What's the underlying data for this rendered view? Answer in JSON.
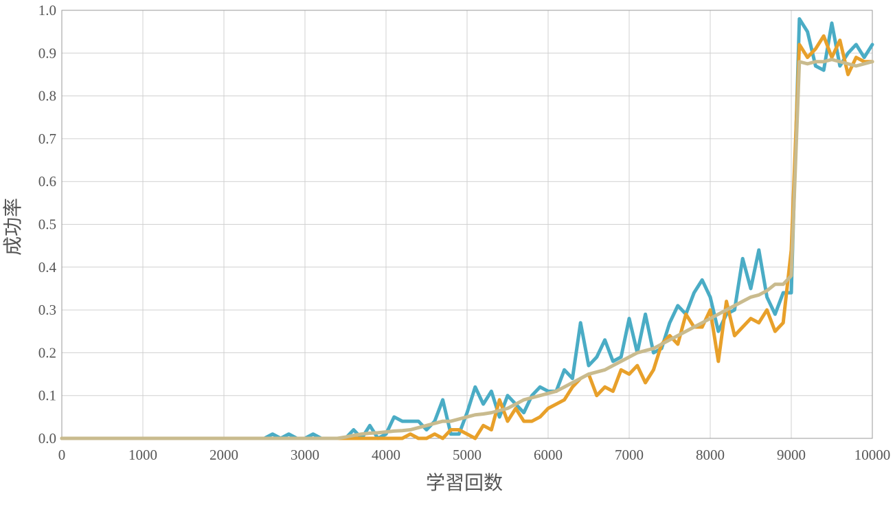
{
  "chart_data": {
    "type": "line",
    "x_label": "学習回数",
    "y_label": "成功率",
    "xlim": [
      0,
      10000
    ],
    "ylim": [
      0,
      1
    ],
    "xticks": [
      0,
      1000,
      2000,
      3000,
      4000,
      5000,
      6000,
      7000,
      8000,
      9000,
      10000
    ],
    "yticks": [
      {
        "value": 0,
        "label": "0.0"
      },
      {
        "value": 0.1,
        "label": "0.1"
      },
      {
        "value": 0.2,
        "label": "0.2"
      },
      {
        "value": 0.3,
        "label": "0.3"
      },
      {
        "value": 0.4,
        "label": "0.4"
      },
      {
        "value": 0.5,
        "label": "0.5"
      },
      {
        "value": 0.6,
        "label": "0.6"
      },
      {
        "value": 0.7,
        "label": "0.7"
      },
      {
        "value": 0.8,
        "label": "0.8"
      },
      {
        "value": 0.9,
        "label": "0.9"
      },
      {
        "value": 1,
        "label": "1.0"
      }
    ],
    "grid": true,
    "x": [
      0,
      100,
      200,
      300,
      400,
      500,
      600,
      700,
      800,
      900,
      1000,
      1100,
      1200,
      1300,
      1400,
      1500,
      1600,
      1700,
      1800,
      1900,
      2000,
      2100,
      2200,
      2300,
      2400,
      2500,
      2600,
      2700,
      2800,
      2900,
      3000,
      3100,
      3200,
      3300,
      3400,
      3500,
      3600,
      3700,
      3800,
      3900,
      4000,
      4100,
      4200,
      4300,
      4400,
      4500,
      4600,
      4700,
      4800,
      4900,
      5000,
      5100,
      5200,
      5300,
      5400,
      5500,
      5600,
      5700,
      5800,
      5900,
      6000,
      6100,
      6200,
      6300,
      6400,
      6500,
      6600,
      6700,
      6800,
      6900,
      7000,
      7100,
      7200,
      7300,
      7400,
      7500,
      7600,
      7700,
      7800,
      7900,
      8000,
      8100,
      8200,
      8300,
      8400,
      8500,
      8600,
      8700,
      8800,
      8900,
      9000,
      9100,
      9200,
      9300,
      9400,
      9500,
      9600,
      9700,
      9800,
      9900,
      10000
    ],
    "series": [
      {
        "color": "#4aacc5",
        "values": [
          0,
          0,
          0,
          0,
          0,
          0,
          0,
          0,
          0,
          0,
          0,
          0,
          0,
          0,
          0,
          0,
          0,
          0,
          0,
          0,
          0,
          0,
          0,
          0,
          0,
          0,
          0.01,
          0,
          0.01,
          0,
          0,
          0.01,
          0,
          0,
          0,
          0,
          0.02,
          0,
          0.03,
          0,
          0.01,
          0.05,
          0.04,
          0.04,
          0.04,
          0.02,
          0.04,
          0.09,
          0.01,
          0.01,
          0.06,
          0.12,
          0.08,
          0.11,
          0.05,
          0.1,
          0.08,
          0.06,
          0.1,
          0.12,
          0.11,
          0.11,
          0.16,
          0.14,
          0.27,
          0.17,
          0.19,
          0.23,
          0.18,
          0.19,
          0.28,
          0.2,
          0.29,
          0.2,
          0.21,
          0.27,
          0.31,
          0.29,
          0.34,
          0.37,
          0.33,
          0.25,
          0.29,
          0.3,
          0.42,
          0.35,
          0.44,
          0.33,
          0.29,
          0.34,
          0.34,
          0.98,
          0.95,
          0.87,
          0.86,
          0.97,
          0.87,
          0.9,
          0.92,
          0.89,
          0.92
        ]
      },
      {
        "color": "#e8a02a",
        "values": [
          0,
          0,
          0,
          0,
          0,
          0,
          0,
          0,
          0,
          0,
          0,
          0,
          0,
          0,
          0,
          0,
          0,
          0,
          0,
          0,
          0,
          0,
          0,
          0,
          0,
          0,
          0,
          0,
          0,
          0,
          0,
          0,
          0,
          0,
          0,
          0,
          0,
          0,
          0,
          0,
          0,
          0,
          0,
          0.01,
          0,
          0,
          0.01,
          0,
          0.02,
          0.02,
          0.01,
          0,
          0.03,
          0.02,
          0.09,
          0.04,
          0.07,
          0.04,
          0.04,
          0.05,
          0.07,
          0.08,
          0.09,
          0.12,
          0.14,
          0.15,
          0.1,
          0.12,
          0.11,
          0.16,
          0.15,
          0.17,
          0.13,
          0.16,
          0.22,
          0.24,
          0.22,
          0.29,
          0.26,
          0.26,
          0.3,
          0.18,
          0.32,
          0.24,
          0.26,
          0.28,
          0.27,
          0.3,
          0.25,
          0.27,
          0.44,
          0.92,
          0.89,
          0.91,
          0.94,
          0.89,
          0.93,
          0.85,
          0.89,
          0.88,
          0.88
        ]
      },
      {
        "color": "#c9bb8e",
        "values": [
          0,
          0,
          0,
          0,
          0,
          0,
          0,
          0,
          0,
          0,
          0,
          0,
          0,
          0,
          0,
          0,
          0,
          0,
          0,
          0,
          0,
          0,
          0,
          0,
          0,
          0,
          0,
          0,
          0,
          0,
          0,
          0,
          0,
          0,
          0,
          0.003,
          0.007,
          0.01,
          0.012,
          0.013,
          0.015,
          0.017,
          0.018,
          0.02,
          0.025,
          0.03,
          0.035,
          0.04,
          0.04,
          0.045,
          0.05,
          0.055,
          0.057,
          0.06,
          0.065,
          0.07,
          0.08,
          0.09,
          0.095,
          0.1,
          0.105,
          0.11,
          0.12,
          0.13,
          0.14,
          0.15,
          0.155,
          0.16,
          0.17,
          0.18,
          0.19,
          0.2,
          0.205,
          0.21,
          0.22,
          0.23,
          0.24,
          0.25,
          0.26,
          0.27,
          0.28,
          0.29,
          0.3,
          0.31,
          0.32,
          0.33,
          0.335,
          0.345,
          0.36,
          0.36,
          0.38,
          0.88,
          0.875,
          0.88,
          0.88,
          0.885,
          0.88,
          0.875,
          0.87,
          0.875,
          0.88
        ]
      }
    ]
  }
}
